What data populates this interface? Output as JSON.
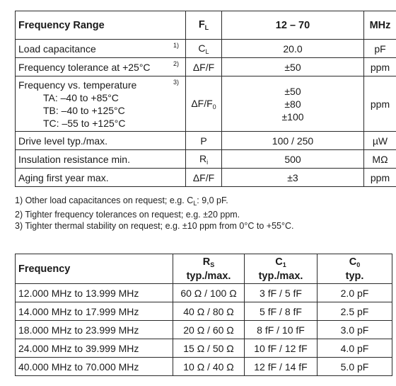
{
  "spec_table": {
    "header": {
      "parameter": "Frequency Range",
      "symbol": "F",
      "symbol_sub": "L",
      "value": "12 – 70",
      "unit": "MHz"
    },
    "rows": [
      {
        "parameter": "Load capacitance",
        "note": "1)",
        "symbol": "C",
        "symbol_sub": "L",
        "value": "20.0",
        "unit": "pF"
      },
      {
        "parameter": "Frequency tolerance at +25°C",
        "note": "2)",
        "symbol": "ΔF/F",
        "symbol_sub": "",
        "value": "±50",
        "unit": "ppm"
      },
      {
        "parameter": "Frequency vs. temperature",
        "note": "3)",
        "sub_lines": [
          "TA: –40 to +85°C",
          "TB: –40 to +125°C",
          "TC: –55 to +125°C"
        ],
        "symbol": "ΔF/F",
        "symbol_sub": "0",
        "values": [
          "±50",
          "±80",
          "±100"
        ],
        "unit": "ppm"
      },
      {
        "parameter": "Drive level typ./max.",
        "note": "",
        "symbol": "P",
        "symbol_sub": "",
        "value": "100 / 250",
        "unit": "µW"
      },
      {
        "parameter": "Insulation resistance min.",
        "note": "",
        "symbol": "R",
        "symbol_sub": "i",
        "value": "500",
        "unit": "MΩ"
      },
      {
        "parameter": "Aging first year max.",
        "note": "",
        "symbol": "ΔF/F",
        "symbol_sub": "",
        "value": "±3",
        "unit": "ppm"
      }
    ]
  },
  "footnotes": {
    "n1_before": "1) Other load capacitances on request; e.g. C",
    "n1_sub": "L",
    "n1_after": ": 9,0 pF.",
    "n2": "2) Tighter frequency tolerances on request; e.g. ±20 ppm.",
    "n3": "3) Tighter thermal stability on request; e.g. ±10 ppm from 0°C to +55°C."
  },
  "freq_table": {
    "header": {
      "frequency": "Frequency",
      "rs": "R",
      "rs_sub": "S",
      "rs_sub2": "typ./max.",
      "c1": "C",
      "c1_sub": "1",
      "c1_sub2": "typ./max.",
      "c0": "C",
      "c0_sub": "0",
      "c0_sub2": "typ."
    },
    "rows": [
      {
        "frequency": "12.000 MHz to 13.999 MHz",
        "rs": "60 Ω / 100 Ω",
        "c1": "3 fF / 5 fF",
        "c0": "2.0 pF"
      },
      {
        "frequency": "14.000 MHz to 17.999 MHz",
        "rs": "40 Ω / 80 Ω",
        "c1": "5 fF / 8 fF",
        "c0": "2.5 pF"
      },
      {
        "frequency": "18.000 MHz to 23.999 MHz",
        "rs": "20 Ω / 60 Ω",
        "c1": "8 fF / 10 fF",
        "c0": "3.0 pF"
      },
      {
        "frequency": "24.000 MHz to 39.999 MHz",
        "rs": "15 Ω / 50 Ω",
        "c1": "10 fF / 12 fF",
        "c0": "4.0 pF"
      },
      {
        "frequency": "40.000 MHz to 70.000 MHz",
        "rs": "10 Ω / 40 Ω",
        "c1": "12 fF / 14 fF",
        "c0": "5.0 pF"
      }
    ]
  }
}
